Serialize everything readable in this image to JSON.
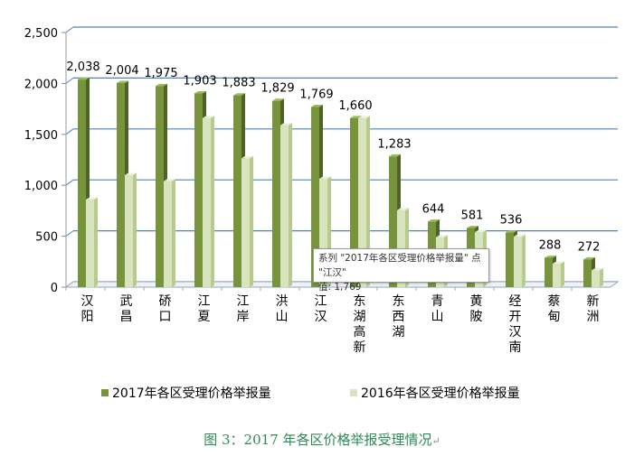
{
  "chart_data": {
    "type": "bar",
    "categories": [
      "汉阳",
      "武昌",
      "硚口",
      "江夏",
      "江岸",
      "洪山",
      "江汉",
      "东湖高新",
      "东西湖",
      "青山",
      "黄陂",
      "经开汉南",
      "蔡甸",
      "新洲"
    ],
    "series": [
      {
        "name": "2017年各区受理价格举报量",
        "values": [
          2038,
          2004,
          1975,
          1903,
          1883,
          1829,
          1769,
          1660,
          1283,
          644,
          581,
          536,
          288,
          272
        ],
        "data_labels": [
          "2,038",
          "2,004",
          "1,975",
          "1,903",
          "1,883",
          "1,829",
          "1,769",
          "1,660",
          "1,283",
          "644",
          "581",
          "536",
          "288",
          "272"
        ],
        "color": "#77933c"
      },
      {
        "name": "2016年各区受理价格举报量",
        "values": [
          860,
          1100,
          1040,
          1660,
          1265,
          1590,
          1065,
          1660,
          755,
          490,
          540,
          495,
          230,
          165
        ],
        "color": "#d7e4bd"
      }
    ],
    "ylim": [
      0,
      2500
    ],
    "yticks": [
      0,
      500,
      1000,
      1500,
      2000,
      2500
    ],
    "ytick_labels": [
      "0",
      "500",
      "1,000",
      "1,500",
      "2,000",
      "2,500"
    ],
    "grid": true,
    "gridline_color": "#4f81bd",
    "legend_position": "bottom"
  },
  "tooltip": {
    "line1": "系列 \"2017年各区受理价格举报量\" 点 \"江汉\"",
    "line2": "值: 1,769"
  },
  "caption": {
    "text": "图 3：2017 年各区价格举报受理情况",
    "mark": "↵"
  }
}
